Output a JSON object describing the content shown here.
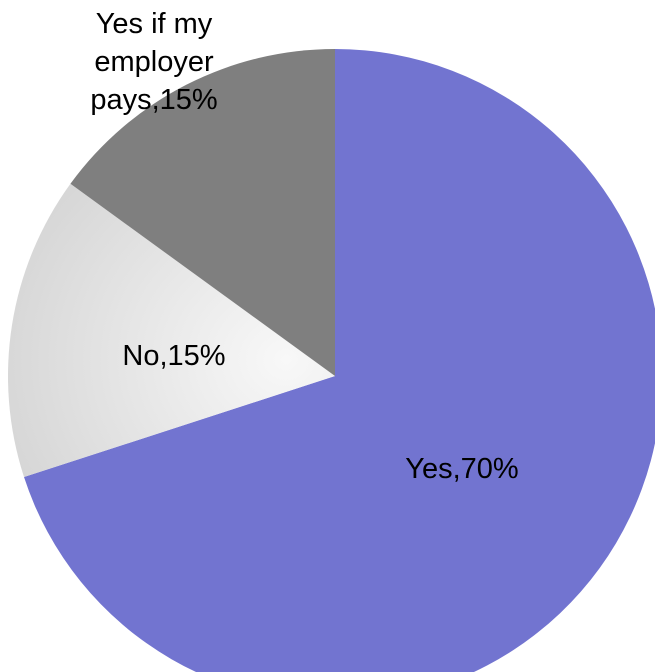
{
  "chart_data": {
    "type": "pie",
    "title": "",
    "slices": [
      {
        "category": "Yes",
        "value": 70,
        "label": "Yes,70%",
        "color": "#7274d0"
      },
      {
        "category": "No",
        "value": 15,
        "label": "No,15%",
        "color": "#ececec",
        "gradient": [
          "#f7f7f7",
          "#d9d9d9"
        ]
      },
      {
        "category": "Yes if my employer pays",
        "value": 15,
        "label_lines": [
          "Yes if my",
          "employer",
          "pays,15%"
        ],
        "color": "#7f7f7f"
      }
    ],
    "start_angle_deg": 0,
    "direction": "clockwise",
    "legend": "none"
  }
}
